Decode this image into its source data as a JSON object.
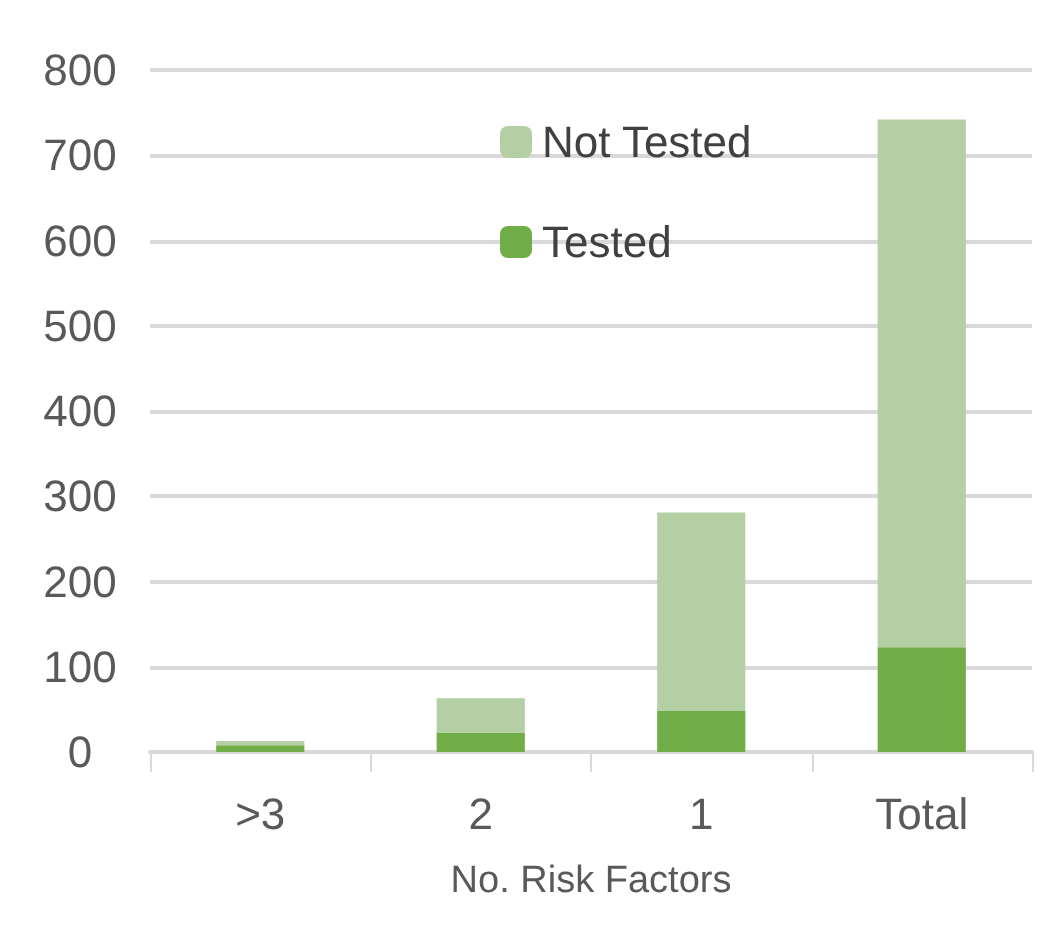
{
  "chart_data": {
    "type": "bar",
    "stacked": true,
    "xlabel": "No. Risk Factors",
    "categories": [
      ">3",
      "2",
      "1",
      "Total"
    ],
    "series": [
      {
        "name": "Tested",
        "color": "#70ad47",
        "values": [
          8,
          23,
          48,
          123
        ]
      },
      {
        "name": "Not Tested",
        "color": "#b4cfa4",
        "values": [
          5,
          40,
          233,
          619
        ]
      }
    ],
    "ylim": [
      0,
      800
    ],
    "yticks": [
      0,
      100,
      200,
      300,
      400,
      500,
      600,
      700,
      800
    ],
    "grid": "y",
    "legend": "top"
  }
}
